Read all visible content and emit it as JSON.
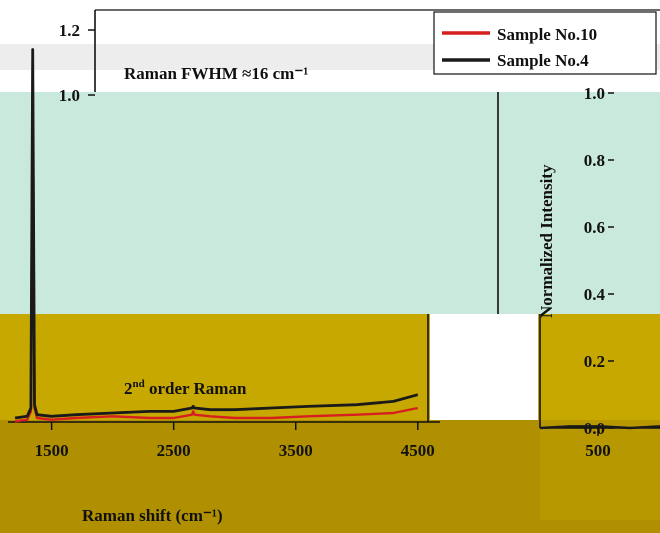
{
  "colors": {
    "band_gray": "#ededed",
    "mint": "#c9e9dc",
    "mustard": "#c7a800",
    "mustard_dark": "#b09000",
    "sample10": "#d61f1f",
    "sample4": "#1a1a1a"
  },
  "chart_data": [
    {
      "type": "line",
      "title": "",
      "xlabel": "Raman shift (cm⁻¹)",
      "ylabel": "",
      "xlim": [
        1200,
        4600
      ],
      "ylim": [
        0,
        1.2
      ],
      "x_ticks": [
        "1500",
        "2500",
        "3500",
        "4500"
      ],
      "x_tick_values": [
        1500,
        2500,
        3500,
        4500
      ],
      "y_ticks": [
        "1.2",
        "1.0"
      ],
      "y_tick_values": [
        1.2,
        1.0
      ],
      "legend": {
        "position": "top-right",
        "entries": [
          {
            "name": "Sample No.10",
            "color": "#d61f1f"
          },
          {
            "name": "Sample No.4",
            "color": "#1a1a1a"
          }
        ]
      },
      "annotations": {
        "fwhm": "Raman FWHM ≈16 cm⁻¹",
        "second_order_base": "2",
        "second_order_sup": "nd",
        "second_order_rest": " order Raman"
      },
      "series": [
        {
          "name": "Sample No.10",
          "x": [
            1200,
            1300,
            1330,
            1345,
            1360,
            1380,
            1500,
            1700,
            2000,
            2300,
            2500,
            2650,
            2660,
            2670,
            2800,
            3000,
            3300,
            3600,
            4000,
            4300,
            4500
          ],
          "y": [
            0.02,
            0.025,
            0.05,
            1.12,
            0.06,
            0.03,
            0.025,
            0.03,
            0.035,
            0.03,
            0.03,
            0.04,
            0.05,
            0.04,
            0.035,
            0.03,
            0.03,
            0.035,
            0.04,
            0.045,
            0.06
          ]
        },
        {
          "name": "Sample No.4",
          "x": [
            1200,
            1300,
            1330,
            1345,
            1360,
            1380,
            1500,
            1700,
            2000,
            2300,
            2500,
            2650,
            2660,
            2670,
            2800,
            3000,
            3300,
            3600,
            4000,
            4300,
            4500
          ],
          "y": [
            0.03,
            0.035,
            0.06,
            1.14,
            0.07,
            0.04,
            0.035,
            0.04,
            0.045,
            0.05,
            0.05,
            0.06,
            0.065,
            0.06,
            0.055,
            0.055,
            0.06,
            0.065,
            0.07,
            0.08,
            0.1
          ]
        }
      ]
    },
    {
      "type": "line",
      "title": "",
      "xlabel": "",
      "ylabel": "Normalized Intensity",
      "ylim": [
        0,
        1.0
      ],
      "x_ticks": [
        "500"
      ],
      "y_ticks": [
        "1.0",
        "0.8",
        "0.6",
        "0.4",
        "0.2",
        "0.0"
      ],
      "y_tick_values": [
        1.0,
        0.8,
        0.6,
        0.4,
        0.2,
        0.0
      ],
      "series": [
        {
          "x": [
            300,
            400,
            500,
            600,
            700
          ],
          "y": [
            0.0,
            0.005,
            0.005,
            0.0,
            0.005
          ]
        }
      ]
    }
  ]
}
